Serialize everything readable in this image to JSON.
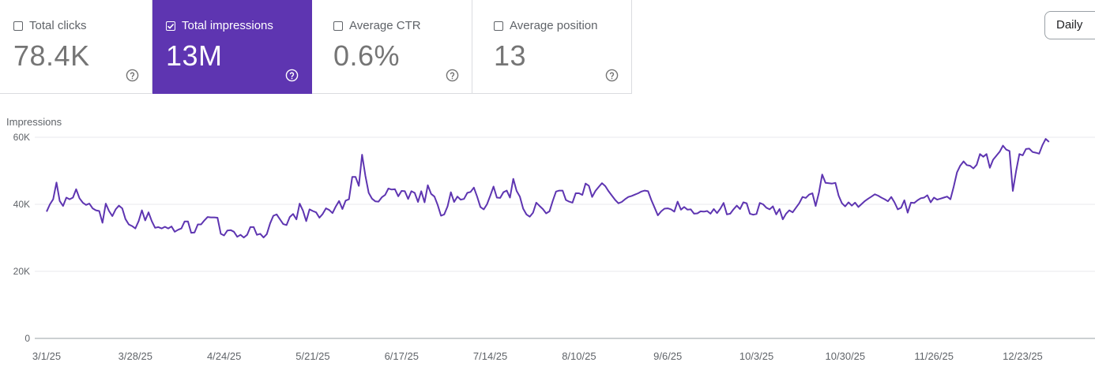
{
  "metrics": [
    {
      "label": "Total clicks",
      "value": "78.4K",
      "checked": false
    },
    {
      "label": "Total impressions",
      "value": "13M",
      "checked": true
    },
    {
      "label": "Average CTR",
      "value": "0.6%",
      "checked": false
    },
    {
      "label": "Average position",
      "value": "13",
      "checked": false
    }
  ],
  "period_button": "Daily",
  "colors": {
    "accent": "#5e35b1",
    "line": "#5e35b1",
    "grid": "#e8eaed"
  },
  "chart_data": {
    "type": "line",
    "title": "",
    "ylabel": "Impressions",
    "ylim": [
      0,
      60000
    ],
    "y_ticks": [
      0,
      20000,
      40000,
      60000
    ],
    "y_tick_labels": [
      "0",
      "20K",
      "40K",
      "60K"
    ],
    "x_tick_labels": [
      "3/1/25",
      "3/28/25",
      "4/24/25",
      "5/21/25",
      "6/17/25",
      "7/14/25",
      "8/10/25",
      "9/6/25",
      "10/3/25",
      "10/30/25",
      "11/26/25",
      "12/23/25"
    ],
    "x_tick_day_index": [
      0,
      27,
      54,
      81,
      108,
      135,
      162,
      189,
      216,
      243,
      270,
      297
    ],
    "x_range_days": [
      0,
      319
    ],
    "series": [
      {
        "name": "Impressions",
        "keypoints": [
          [
            0,
            37800
          ],
          [
            1,
            40000
          ],
          [
            2,
            41500
          ],
          [
            3,
            46500
          ],
          [
            4,
            41000
          ],
          [
            5,
            39500
          ],
          [
            6,
            42000
          ],
          [
            7,
            41500
          ],
          [
            8,
            42000
          ],
          [
            9,
            44500
          ],
          [
            10,
            41800
          ],
          [
            11,
            40500
          ],
          [
            12,
            39800
          ],
          [
            13,
            40200
          ],
          [
            14,
            38800
          ],
          [
            15,
            38200
          ],
          [
            16,
            38000
          ],
          [
            17,
            34500
          ],
          [
            18,
            40200
          ],
          [
            19,
            38000
          ],
          [
            20,
            36500
          ],
          [
            21,
            38500
          ],
          [
            22,
            39600
          ],
          [
            23,
            38800
          ],
          [
            24,
            35600
          ],
          [
            25,
            34000
          ],
          [
            26,
            33500
          ],
          [
            27,
            32800
          ],
          [
            28,
            35000
          ],
          [
            29,
            38200
          ],
          [
            30,
            35200
          ],
          [
            31,
            37600
          ],
          [
            32,
            35000
          ],
          [
            33,
            33000
          ],
          [
            34,
            33200
          ],
          [
            35,
            32800
          ],
          [
            36,
            33300
          ],
          [
            37,
            32800
          ],
          [
            38,
            33400
          ],
          [
            39,
            31800
          ],
          [
            40,
            32400
          ],
          [
            41,
            32800
          ],
          [
            42,
            34900
          ],
          [
            43,
            34900
          ],
          [
            44,
            31500
          ],
          [
            45,
            31600
          ],
          [
            46,
            34000
          ],
          [
            47,
            34000
          ],
          [
            48,
            35200
          ],
          [
            49,
            36200
          ],
          [
            50,
            36100
          ],
          [
            51,
            36100
          ],
          [
            52,
            36000
          ],
          [
            53,
            31200
          ],
          [
            54,
            30700
          ],
          [
            55,
            32200
          ],
          [
            56,
            32300
          ],
          [
            57,
            31800
          ],
          [
            58,
            30300
          ],
          [
            59,
            30900
          ],
          [
            60,
            30100
          ],
          [
            61,
            30900
          ],
          [
            62,
            33200
          ],
          [
            63,
            33200
          ],
          [
            64,
            30900
          ],
          [
            65,
            31200
          ],
          [
            66,
            30100
          ],
          [
            67,
            31100
          ],
          [
            68,
            34300
          ],
          [
            69,
            36600
          ],
          [
            70,
            37000
          ],
          [
            71,
            35500
          ],
          [
            72,
            34100
          ],
          [
            73,
            33800
          ],
          [
            74,
            36200
          ],
          [
            75,
            37100
          ],
          [
            76,
            35500
          ],
          [
            77,
            40200
          ],
          [
            78,
            38100
          ],
          [
            79,
            35000
          ],
          [
            80,
            38500
          ],
          [
            81,
            38000
          ],
          [
            82,
            37600
          ],
          [
            83,
            36000
          ],
          [
            84,
            37100
          ],
          [
            85,
            38800
          ],
          [
            86,
            38300
          ],
          [
            87,
            37400
          ],
          [
            88,
            39400
          ],
          [
            89,
            41000
          ],
          [
            90,
            38600
          ],
          [
            91,
            41100
          ],
          [
            92,
            41500
          ],
          [
            93,
            48200
          ],
          [
            94,
            48200
          ],
          [
            95,
            45500
          ],
          [
            96,
            54800
          ],
          [
            97,
            48500
          ],
          [
            98,
            43400
          ],
          [
            99,
            41700
          ],
          [
            100,
            40900
          ],
          [
            101,
            40800
          ],
          [
            102,
            42100
          ],
          [
            103,
            42800
          ],
          [
            104,
            44700
          ],
          [
            105,
            44400
          ],
          [
            106,
            44500
          ],
          [
            107,
            42400
          ],
          [
            108,
            44000
          ],
          [
            109,
            43900
          ],
          [
            110,
            41600
          ],
          [
            111,
            43900
          ],
          [
            112,
            43400
          ],
          [
            113,
            40700
          ],
          [
            114,
            43900
          ],
          [
            115,
            40600
          ],
          [
            116,
            45700
          ],
          [
            117,
            43100
          ],
          [
            118,
            42300
          ],
          [
            119,
            39800
          ],
          [
            120,
            36600
          ],
          [
            121,
            37000
          ],
          [
            122,
            39400
          ],
          [
            123,
            43600
          ],
          [
            124,
            40700
          ],
          [
            125,
            42300
          ],
          [
            126,
            41400
          ],
          [
            127,
            41600
          ],
          [
            128,
            43400
          ],
          [
            129,
            43700
          ],
          [
            130,
            45000
          ],
          [
            131,
            42300
          ],
          [
            132,
            39200
          ],
          [
            133,
            38500
          ],
          [
            134,
            40000
          ],
          [
            135,
            42600
          ],
          [
            136,
            45300
          ],
          [
            137,
            42000
          ],
          [
            138,
            41900
          ],
          [
            139,
            43600
          ],
          [
            140,
            44100
          ],
          [
            141,
            42000
          ],
          [
            142,
            47600
          ],
          [
            143,
            44000
          ],
          [
            144,
            42300
          ],
          [
            145,
            38700
          ],
          [
            146,
            37000
          ],
          [
            147,
            36300
          ],
          [
            148,
            37500
          ],
          [
            149,
            40500
          ],
          [
            150,
            39500
          ],
          [
            151,
            38600
          ],
          [
            152,
            37300
          ],
          [
            153,
            37900
          ],
          [
            154,
            41000
          ],
          [
            155,
            43800
          ],
          [
            156,
            44100
          ],
          [
            157,
            44100
          ],
          [
            158,
            41300
          ],
          [
            159,
            40800
          ],
          [
            160,
            40500
          ],
          [
            161,
            43300
          ],
          [
            162,
            43300
          ],
          [
            163,
            42800
          ],
          [
            164,
            46200
          ],
          [
            165,
            45500
          ],
          [
            166,
            42200
          ],
          [
            167,
            44000
          ],
          [
            168,
            45200
          ],
          [
            169,
            46300
          ],
          [
            170,
            45400
          ],
          [
            171,
            43900
          ],
          [
            172,
            42600
          ],
          [
            173,
            41300
          ],
          [
            174,
            40300
          ],
          [
            175,
            40700
          ],
          [
            176,
            41500
          ],
          [
            177,
            42200
          ],
          [
            178,
            42500
          ],
          [
            179,
            42900
          ],
          [
            180,
            43300
          ],
          [
            181,
            43800
          ],
          [
            182,
            44100
          ],
          [
            183,
            43900
          ],
          [
            184,
            41300
          ],
          [
            185,
            39000
          ],
          [
            186,
            36700
          ],
          [
            187,
            37900
          ],
          [
            188,
            38700
          ],
          [
            189,
            38800
          ],
          [
            190,
            38500
          ],
          [
            191,
            37800
          ],
          [
            192,
            40800
          ],
          [
            193,
            38400
          ],
          [
            194,
            39200
          ],
          [
            195,
            38400
          ],
          [
            196,
            38500
          ],
          [
            197,
            37200
          ],
          [
            198,
            37300
          ],
          [
            199,
            37900
          ],
          [
            200,
            37800
          ],
          [
            201,
            38000
          ],
          [
            202,
            37200
          ],
          [
            203,
            38600
          ],
          [
            204,
            37400
          ],
          [
            205,
            38700
          ],
          [
            206,
            40400
          ],
          [
            207,
            37000
          ],
          [
            208,
            37200
          ],
          [
            209,
            38500
          ],
          [
            210,
            39600
          ],
          [
            211,
            38600
          ],
          [
            212,
            40600
          ],
          [
            213,
            40300
          ],
          [
            214,
            37200
          ],
          [
            215,
            36900
          ],
          [
            216,
            37100
          ],
          [
            217,
            40400
          ],
          [
            218,
            40000
          ],
          [
            219,
            39000
          ],
          [
            220,
            38500
          ],
          [
            221,
            39400
          ],
          [
            222,
            37000
          ],
          [
            223,
            38600
          ],
          [
            224,
            35500
          ],
          [
            225,
            37200
          ],
          [
            226,
            38200
          ],
          [
            227,
            37600
          ],
          [
            228,
            39000
          ],
          [
            229,
            40300
          ],
          [
            230,
            42200
          ],
          [
            231,
            41900
          ],
          [
            232,
            42900
          ],
          [
            233,
            43300
          ],
          [
            234,
            39500
          ],
          [
            235,
            43500
          ],
          [
            236,
            48900
          ],
          [
            237,
            46400
          ],
          [
            238,
            46300
          ],
          [
            239,
            46200
          ],
          [
            240,
            46400
          ],
          [
            241,
            42600
          ],
          [
            242,
            40300
          ],
          [
            243,
            39400
          ],
          [
            244,
            40600
          ],
          [
            245,
            39600
          ],
          [
            246,
            40500
          ],
          [
            247,
            39200
          ],
          [
            248,
            40100
          ],
          [
            249,
            41000
          ],
          [
            250,
            41700
          ],
          [
            251,
            42300
          ],
          [
            252,
            43000
          ],
          [
            253,
            42600
          ],
          [
            254,
            42000
          ],
          [
            255,
            41500
          ],
          [
            256,
            40900
          ],
          [
            257,
            42200
          ],
          [
            258,
            40600
          ],
          [
            259,
            38500
          ],
          [
            260,
            39000
          ],
          [
            261,
            41200
          ],
          [
            262,
            37500
          ],
          [
            263,
            40500
          ],
          [
            264,
            40400
          ],
          [
            265,
            41200
          ],
          [
            266,
            41800
          ],
          [
            267,
            42000
          ],
          [
            268,
            42700
          ],
          [
            269,
            40600
          ],
          [
            270,
            42000
          ],
          [
            271,
            41400
          ],
          [
            272,
            41700
          ],
          [
            273,
            42000
          ],
          [
            274,
            42300
          ],
          [
            275,
            41500
          ],
          [
            276,
            45200
          ],
          [
            277,
            49500
          ],
          [
            278,
            51500
          ],
          [
            279,
            52800
          ],
          [
            280,
            51700
          ],
          [
            281,
            51500
          ],
          [
            282,
            50700
          ],
          [
            283,
            51800
          ],
          [
            284,
            55000
          ],
          [
            285,
            54200
          ],
          [
            286,
            55000
          ],
          [
            287,
            50900
          ],
          [
            288,
            53300
          ],
          [
            289,
            54500
          ],
          [
            290,
            55700
          ],
          [
            291,
            57500
          ],
          [
            292,
            56300
          ],
          [
            293,
            55900
          ],
          [
            294,
            44000
          ],
          [
            295,
            50000
          ],
          [
            296,
            55000
          ],
          [
            297,
            54600
          ],
          [
            298,
            56500
          ],
          [
            299,
            56600
          ],
          [
            300,
            55600
          ],
          [
            301,
            55400
          ],
          [
            302,
            55100
          ],
          [
            303,
            57600
          ],
          [
            304,
            59500
          ],
          [
            305,
            58600
          ]
        ]
      }
    ]
  }
}
